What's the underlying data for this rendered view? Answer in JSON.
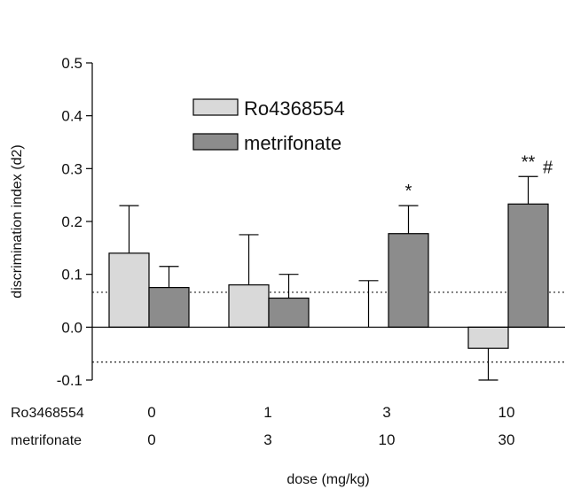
{
  "chart_data": {
    "type": "bar",
    "title": "",
    "xlabel": "dose (mg/kg)",
    "ylabel": "discrimination index (d2)",
    "ylim": [
      -0.1,
      0.5
    ],
    "yticks": [
      "-0.1",
      "0.0",
      "0.1",
      "0.2",
      "0.3",
      "0.4",
      "0.5"
    ],
    "dose_rows": [
      {
        "name": "Ro3468554",
        "values": [
          "0",
          "1",
          "3",
          "10"
        ]
      },
      {
        "name": "metrifonate",
        "values": [
          "0",
          "3",
          "10",
          "30"
        ]
      }
    ],
    "series": [
      {
        "name": "Ro4368554",
        "values": [
          0.14,
          0.08,
          null,
          -0.04
        ],
        "errors": [
          0.09,
          0.095,
          0.088,
          0.06
        ],
        "color": "#d9d9d9"
      },
      {
        "name": "metrifonate",
        "values": [
          0.075,
          0.055,
          0.177,
          0.233
        ],
        "errors": [
          0.04,
          0.045,
          0.053,
          0.052
        ],
        "color": "#8c8c8c"
      }
    ],
    "reference_lines": [
      0.066,
      -0.066
    ],
    "annotations": [
      {
        "group": 2,
        "series": 1,
        "text": "*"
      },
      {
        "group": 3,
        "series": 1,
        "text": "**",
        "suffix": "#"
      }
    ],
    "legend": "top-center",
    "grid": false
  }
}
